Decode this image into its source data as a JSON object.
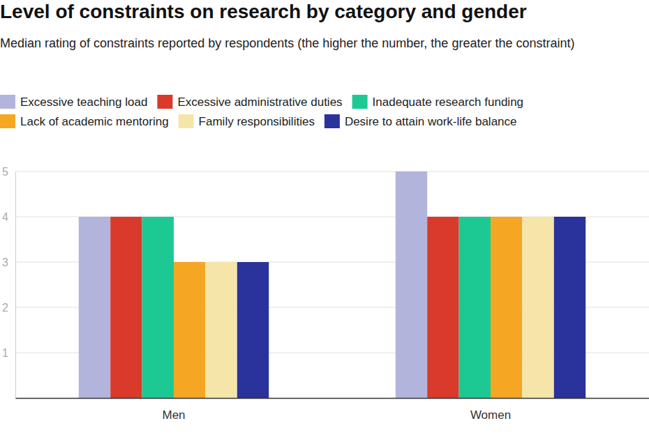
{
  "chart_data": {
    "type": "bar",
    "title": "Level of constraints on research by category and gender",
    "subtitle": "Median rating of constraints reported by respondents (the higher the number, the greater the constraint)",
    "categories": [
      "Men",
      "Women"
    ],
    "series": [
      {
        "name": "Excessive teaching load",
        "color": "#b3b4dc",
        "values": [
          4,
          5
        ]
      },
      {
        "name": "Excessive administrative duties",
        "color": "#d93a2b",
        "values": [
          4,
          4
        ]
      },
      {
        "name": "Inadequate research funding",
        "color": "#1dc993",
        "values": [
          4,
          4
        ]
      },
      {
        "name": "Lack of academic mentoring",
        "color": "#f5a623",
        "values": [
          3,
          4
        ]
      },
      {
        "name": "Family responsibilities",
        "color": "#f6e5a9",
        "values": [
          3,
          4
        ]
      },
      {
        "name": "Desire to attain work-life balance",
        "color": "#29339b",
        "values": [
          3,
          4
        ]
      }
    ],
    "ylim": [
      0,
      5
    ],
    "yticks": [
      1,
      2,
      3,
      4,
      5
    ],
    "grid": true,
    "legend": "top"
  }
}
